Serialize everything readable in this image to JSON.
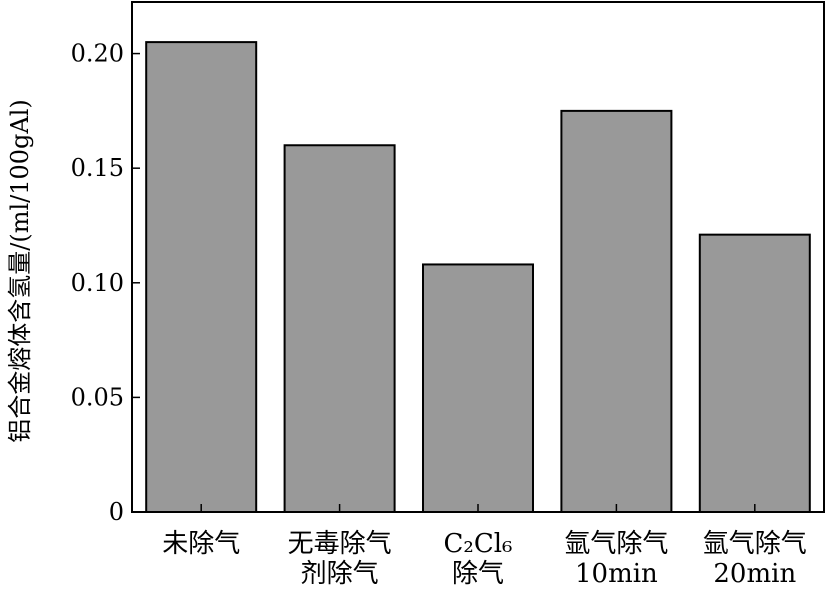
{
  "chart_data": {
    "type": "bar",
    "categories": [
      {
        "lines": [
          "未除气"
        ]
      },
      {
        "lines": [
          "无毒除气",
          "剂除气"
        ]
      },
      {
        "lines": [
          "C₂Cl₆",
          "除气"
        ]
      },
      {
        "lines": [
          "氩气除气",
          "10min"
        ]
      },
      {
        "lines": [
          "氩气除气",
          "20min"
        ]
      }
    ],
    "values": [
      0.205,
      0.16,
      0.108,
      0.175,
      0.121
    ],
    "ylabel": "铝合金熔体含氢量/(ml/100gAl)",
    "yticks": [
      0,
      0.05,
      0.1,
      0.15,
      0.2
    ],
    "ytick_labels": [
      "0",
      "0.05",
      "0.10",
      "0.15",
      "0.20"
    ],
    "ylim": [
      0,
      0.2225
    ],
    "bar_color": "#999999",
    "grid": false
  }
}
